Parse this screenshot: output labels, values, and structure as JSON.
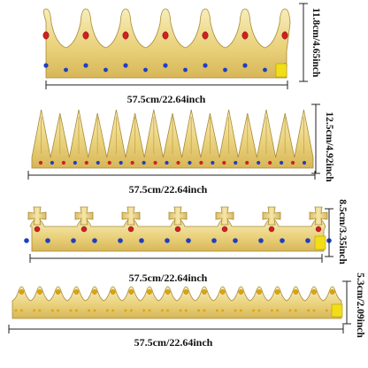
{
  "crowns": [
    {
      "name": "crown-style-1",
      "style": "jeweled-points",
      "width_label": "57.5cm/22.64inch",
      "height_label": "11.8cm/4.65inch",
      "jewel_colors": [
        "#d21f1f",
        "#1f3fbf"
      ]
    },
    {
      "name": "crown-style-2",
      "style": "tall-spikes",
      "width_label": "57.5cm/22.64inch",
      "height_label": "12.5cm/4.92inch",
      "jewel_colors": [
        "#d21f1f",
        "#1f3fbf"
      ]
    },
    {
      "name": "crown-style-3",
      "style": "cross-points",
      "width_label": "57.5cm/22.64inch",
      "height_label": "8.5cm/3.35inch",
      "jewel_colors": [
        "#d21f1f",
        "#1f3fbf"
      ]
    },
    {
      "name": "crown-style-4",
      "style": "short-points",
      "width_label": "57.5cm/22.64inch",
      "height_label": "5.3cm/2.09inch",
      "jewel_colors": [
        "#e0a400"
      ]
    }
  ],
  "colors": {
    "gold_light": "#f6e7a3",
    "gold_mid": "#e3c96c",
    "gold_dark": "#b8973a",
    "outline": "#9c7d2a",
    "tab_yellow": "#f2de16",
    "dimension_line": "#222222"
  }
}
